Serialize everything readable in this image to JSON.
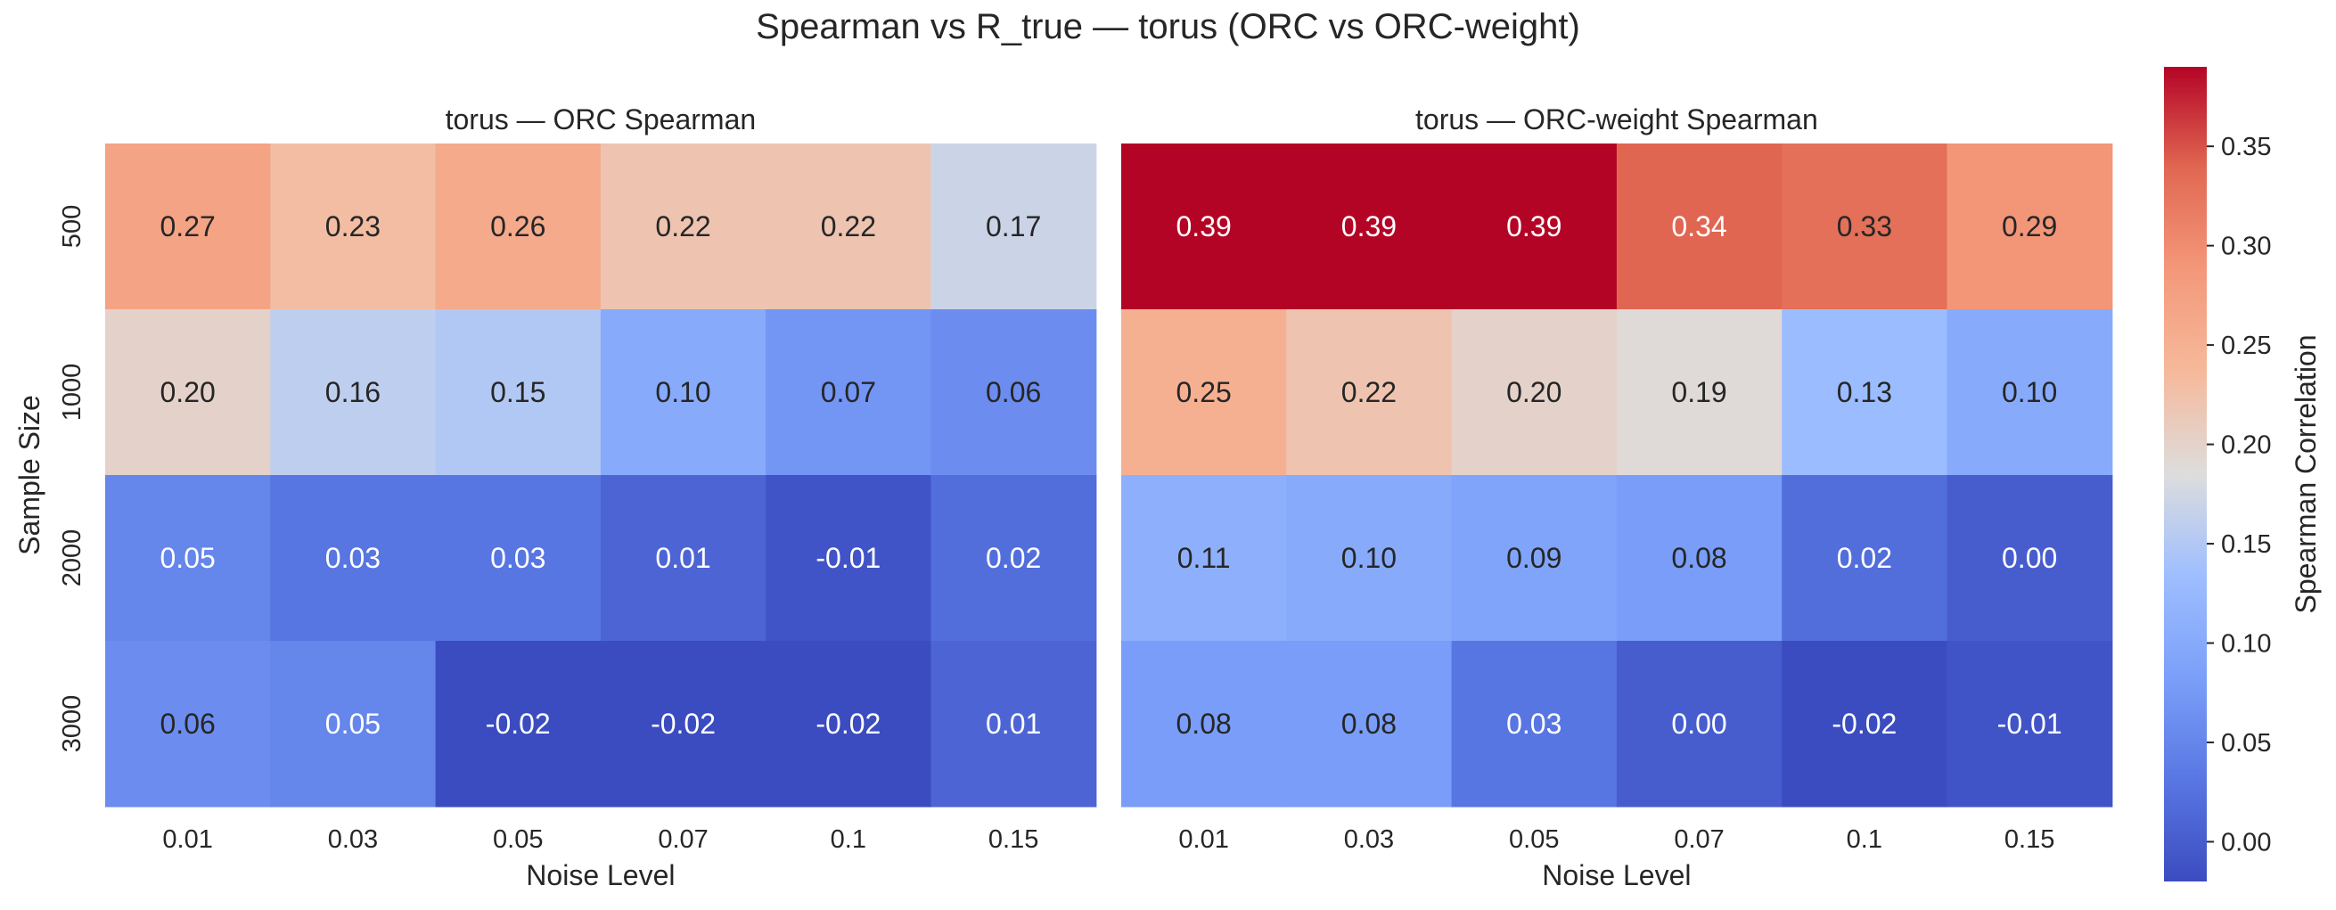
{
  "suptitle": "Spearman vs R_true — torus (ORC vs ORC-weight)",
  "colormap": {
    "name": "coolwarm",
    "vmin": -0.02,
    "vmax": 0.39,
    "stops": [
      [
        0.0,
        "#3b4cc0"
      ],
      [
        0.125,
        "#5977e3"
      ],
      [
        0.25,
        "#7b9ff9"
      ],
      [
        0.375,
        "#9ebeff"
      ],
      [
        0.5,
        "#dddddd"
      ],
      [
        0.625,
        "#f6b99b"
      ],
      [
        0.75,
        "#f4987a"
      ],
      [
        0.875,
        "#e16852"
      ],
      [
        1.0,
        "#b40426"
      ]
    ],
    "light_text_color": "#ffffff",
    "dark_text_color": "#262626"
  },
  "colorbar": {
    "label": "Spearman Correlation",
    "ticks": [
      "0.00",
      "0.05",
      "0.10",
      "0.15",
      "0.20",
      "0.25",
      "0.30",
      "0.35"
    ]
  },
  "chart_data": [
    {
      "type": "heatmap",
      "title": "torus — ORC Spearman",
      "xlabel": "Noise Level",
      "ylabel": "Sample Size",
      "x_categories": [
        "0.01",
        "0.03",
        "0.05",
        "0.07",
        "0.1",
        "0.15"
      ],
      "y_categories": [
        "500",
        "1000",
        "2000",
        "3000"
      ],
      "values": [
        [
          0.27,
          0.23,
          0.26,
          0.22,
          0.22,
          0.17
        ],
        [
          0.2,
          0.16,
          0.15,
          0.1,
          0.07,
          0.06
        ],
        [
          0.05,
          0.03,
          0.03,
          0.01,
          -0.01,
          0.02
        ],
        [
          0.06,
          0.05,
          -0.02,
          -0.02,
          -0.02,
          0.01
        ]
      ]
    },
    {
      "type": "heatmap",
      "title": "torus — ORC-weight Spearman",
      "xlabel": "Noise Level",
      "ylabel": "",
      "x_categories": [
        "0.01",
        "0.03",
        "0.05",
        "0.07",
        "0.1",
        "0.15"
      ],
      "y_categories": [
        "500",
        "1000",
        "2000",
        "3000"
      ],
      "values": [
        [
          0.39,
          0.39,
          0.39,
          0.34,
          0.33,
          0.29
        ],
        [
          0.25,
          0.22,
          0.2,
          0.19,
          0.13,
          0.1
        ],
        [
          0.11,
          0.1,
          0.09,
          0.08,
          0.02,
          0.0
        ],
        [
          0.08,
          0.08,
          0.03,
          0.0,
          -0.02,
          -0.01
        ]
      ]
    }
  ]
}
